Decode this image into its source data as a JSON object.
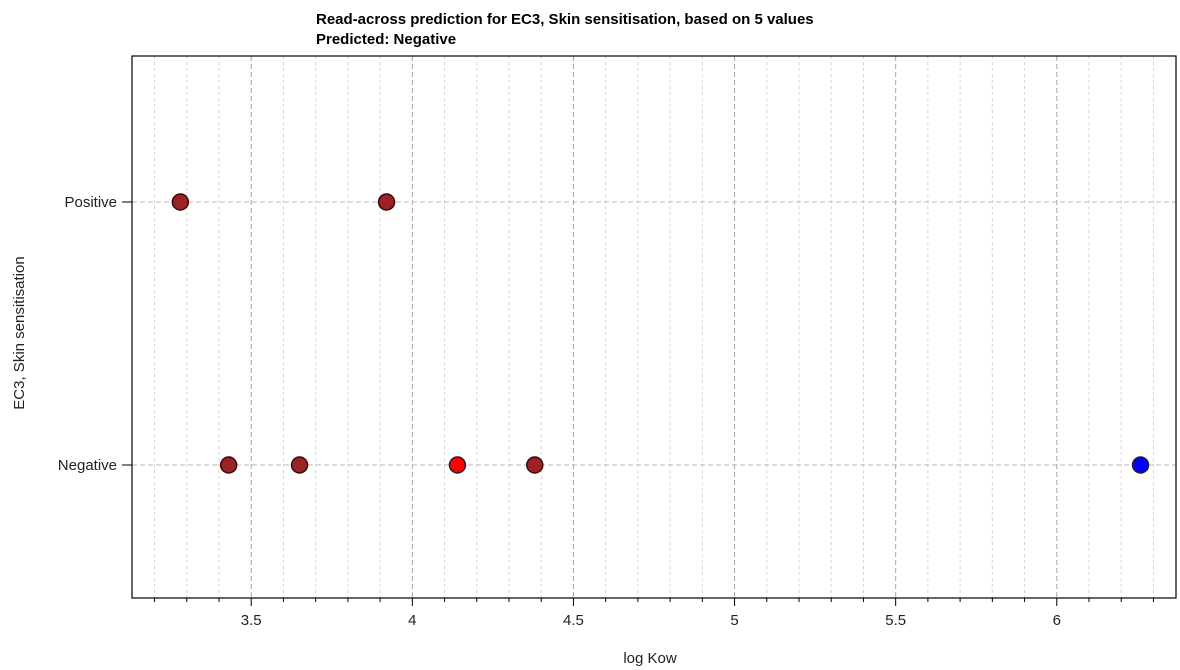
{
  "chart_data": {
    "type": "scatter",
    "title_lines": [
      "Read-across prediction for EC3, Skin sensitisation, based on 5 values",
      "Predicted: Negative"
    ],
    "xlabel": "log Kow",
    "ylabel": "EC3, Skin sensitisation",
    "xlim": [
      3.13,
      6.37
    ],
    "x_ticks": [
      3.5,
      4,
      4.5,
      5,
      5.5,
      6
    ],
    "x_tick_labels": [
      "3.5",
      "4",
      "4.5",
      "5",
      "5.5",
      "6"
    ],
    "y_categories": [
      "Negative",
      "Positive"
    ],
    "grid": true,
    "points": [
      {
        "x": 3.28,
        "y": "Positive",
        "color": "#9b2226",
        "role": "training"
      },
      {
        "x": 3.92,
        "y": "Positive",
        "color": "#9b2226",
        "role": "training"
      },
      {
        "x": 3.43,
        "y": "Negative",
        "color": "#9b2226",
        "role": "training"
      },
      {
        "x": 3.65,
        "y": "Negative",
        "color": "#9b2226",
        "role": "training"
      },
      {
        "x": 4.38,
        "y": "Negative",
        "color": "#9b2226",
        "role": "training"
      },
      {
        "x": 4.14,
        "y": "Negative",
        "color": "#ff0000",
        "role": "prediction"
      },
      {
        "x": 6.26,
        "y": "Negative",
        "color": "#0000ff",
        "role": "target"
      }
    ]
  }
}
